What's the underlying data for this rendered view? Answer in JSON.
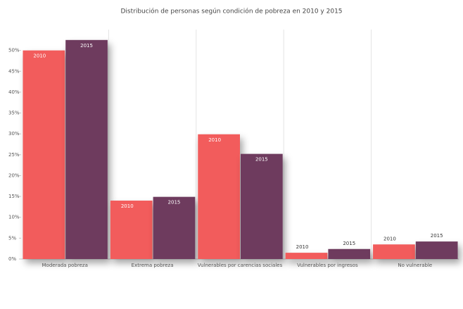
{
  "chart_data": {
    "type": "bar",
    "title": "Distribución de personas según condición de pobreza en 2010 y 2015",
    "categories": [
      "Moderada pobreza",
      "Extrema pobreza",
      "Vulnerables por carencias sociales",
      "Vulnerables por ingresos",
      "No vulnerable"
    ],
    "series": [
      {
        "name": "2010",
        "color": "#f25c5c",
        "values": [
          50,
          14,
          29.9,
          1.5,
          3.5
        ]
      },
      {
        "name": "2015",
        "color": "#6e3b5e",
        "values": [
          52.5,
          14.9,
          25.2,
          2.4,
          4.2
        ]
      }
    ],
    "ylim": [
      0,
      55
    ],
    "yticks": [
      {
        "value": 0,
        "label": "0%"
      },
      {
        "value": 5,
        "label": "5%"
      },
      {
        "value": 10,
        "label": "10%"
      },
      {
        "value": 15,
        "label": "15%"
      },
      {
        "value": 20,
        "label": "20%"
      },
      {
        "value": 25,
        "label": "25%"
      },
      {
        "value": 30,
        "label": "30%"
      },
      {
        "value": 35,
        "label": "35%"
      },
      {
        "value": 40,
        "label": "40%"
      },
      {
        "value": 45,
        "label": "45%"
      },
      {
        "value": 50,
        "label": "50%"
      }
    ],
    "grid": false
  }
}
